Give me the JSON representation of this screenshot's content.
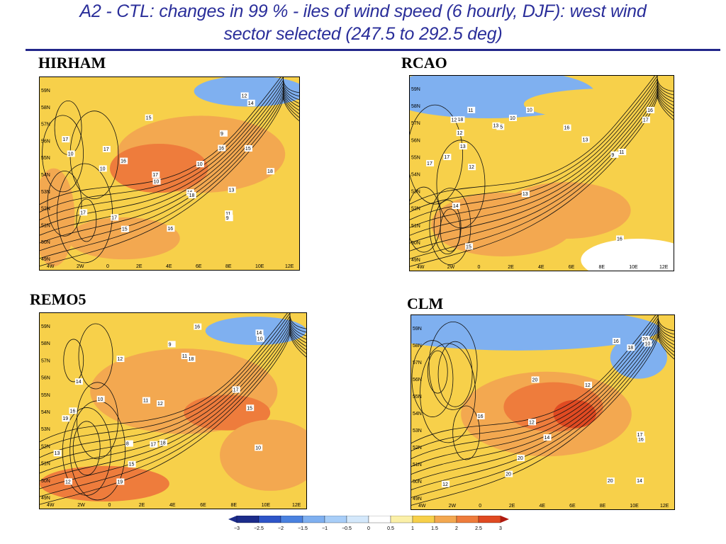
{
  "title": {
    "line1": "A2 - CTL: changes in 99 % - iles of wind speed (6 hourly, DJF): west wind",
    "line2": "sector selected (247.5 to 292.5 deg)"
  },
  "colors": {
    "title": "#2a2e9a",
    "scale": [
      "#1c2c8a",
      "#2e55c8",
      "#4a82e0",
      "#7fb0f0",
      "#a8cef8",
      "#d4e8fb",
      "#ffffff",
      "#fbf0a8",
      "#f7d04a",
      "#f3a850",
      "#ee7c3c",
      "#e04a22",
      "#b01a10"
    ]
  },
  "chart_data": [
    {
      "type": "heatmap",
      "model": "HIRHAM",
      "x_ticks": [
        "4W",
        "2W",
        "0",
        "2E",
        "4E",
        "6E",
        "8E",
        "10E",
        "12E"
      ],
      "y_ticks": [
        "59N",
        "58N",
        "57N",
        "56N",
        "55N",
        "54N",
        "53N",
        "52N",
        "51N",
        "50N",
        "49N"
      ],
      "contour_labels": [
        "18",
        "16",
        "10",
        "17",
        "17",
        "17",
        "17",
        "16",
        "16",
        "12",
        "10",
        "14",
        "13",
        "15",
        "11",
        "18",
        "15",
        "9",
        "10",
        "9",
        "10",
        "17",
        "16",
        "15"
      ]
    },
    {
      "type": "heatmap",
      "model": "RCAO",
      "x_ticks": [
        "4W",
        "2W",
        "0",
        "2E",
        "4E",
        "6E",
        "8E",
        "10E",
        "12E"
      ],
      "y_ticks": [
        "59N",
        "58N",
        "57N",
        "56N",
        "55N",
        "54N",
        "53N",
        "52N",
        "51N",
        "50N",
        "49N"
      ],
      "contour_labels": [
        "16",
        "15",
        "13",
        "18",
        "12",
        "17",
        "10",
        "17",
        "12",
        "11",
        "11",
        "15",
        "13",
        "16",
        "9",
        "13",
        "10",
        "16",
        "17",
        "12",
        "14",
        "13"
      ]
    },
    {
      "type": "heatmap",
      "model": "REMO5",
      "x_ticks": [
        "4W",
        "2W",
        "0",
        "2E",
        "4E",
        "6E",
        "8E",
        "10E",
        "12E"
      ],
      "y_ticks": [
        "59N",
        "58N",
        "57N",
        "56N",
        "55N",
        "54N",
        "53N",
        "52N",
        "51N",
        "50N",
        "49N"
      ],
      "contour_labels": [
        "19",
        "16",
        "17",
        "19",
        "12",
        "10",
        "18",
        "18",
        "11",
        "10",
        "15",
        "17",
        "16",
        "15",
        "14",
        "13",
        "12",
        "10",
        "11",
        "9",
        "12",
        "14",
        "8"
      ]
    },
    {
      "type": "heatmap",
      "model": "CLM",
      "x_ticks": [
        "4W",
        "2W",
        "0",
        "2E",
        "4E",
        "6E",
        "8E",
        "10E",
        "12E"
      ],
      "y_ticks": [
        "59N",
        "58N",
        "57N",
        "56N",
        "55N",
        "54N",
        "53N",
        "52N",
        "51N",
        "50N",
        "49N"
      ],
      "contour_labels": [
        "16",
        "20",
        "20",
        "14",
        "20",
        "20",
        "20",
        "12",
        "10",
        "18",
        "12",
        "16",
        "14",
        "16",
        "17",
        "12"
      ]
    },
    {
      "type": "colorbar",
      "ticks": [
        "−3",
        "−2.5",
        "−2",
        "−1.5",
        "−1",
        "−0.5",
        "0",
        "0.5",
        "1",
        "1.5",
        "2",
        "2.5",
        "3"
      ]
    }
  ]
}
